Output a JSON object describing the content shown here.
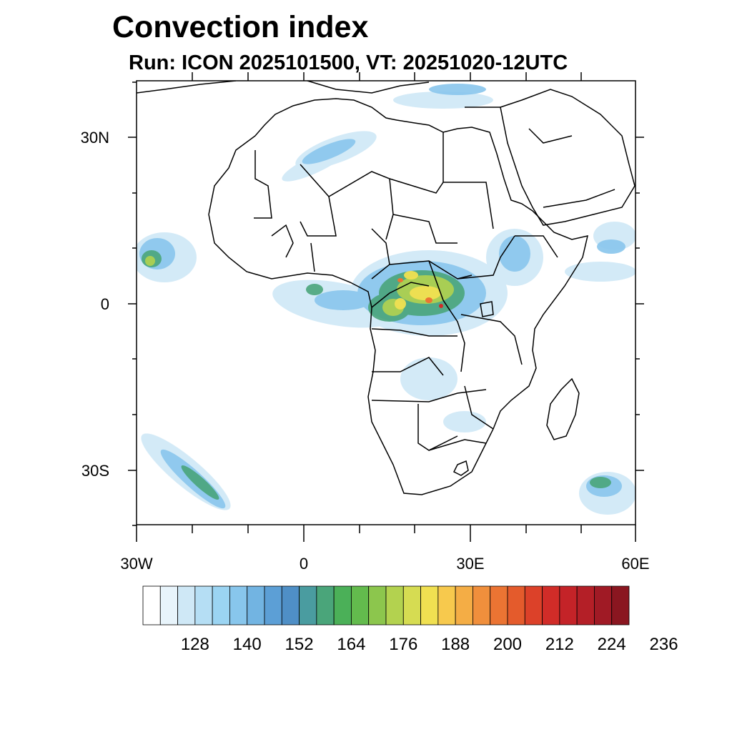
{
  "title": "Convection index",
  "subtitle": "Run: ICON 2025101500,  VT: 20251020-12UTC",
  "axes": {
    "lat_labels": [
      "30N",
      "0",
      "30S"
    ],
    "lon_labels": [
      "30W",
      "0",
      "30E",
      "60E"
    ]
  },
  "colorbar": {
    "colors": [
      "#ffffff",
      "#e8f4fb",
      "#cfe8f6",
      "#b5def4",
      "#9bd4f2",
      "#88c6ec",
      "#72b4e2",
      "#5c9fd6",
      "#4f8fc6",
      "#4a9ca0",
      "#4aa57a",
      "#4bb058",
      "#63bb4d",
      "#8cc64d",
      "#b3d24f",
      "#d6dc52",
      "#f0e051",
      "#f7c94d",
      "#f4ad45",
      "#f08f3c",
      "#eb7433",
      "#e45b2c",
      "#dc4129",
      "#d12c28",
      "#c42328",
      "#b41f27",
      "#a01a25",
      "#8a1620"
    ],
    "labels": [
      "128",
      "140",
      "152",
      "164",
      "176",
      "188",
      "200",
      "212",
      "224",
      "236"
    ]
  },
  "map": {
    "region": "Africa",
    "projection": "cylindrical-equidistant"
  }
}
